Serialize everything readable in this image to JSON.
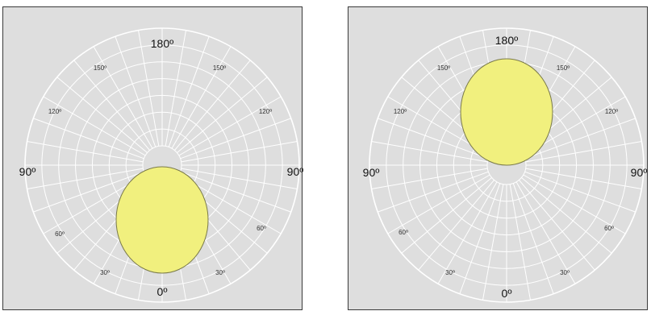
{
  "panels": [
    {
      "labels": {
        "top": "180º",
        "bottom": "0º",
        "left": "90º",
        "right": "90º",
        "upper_left_150": "150º",
        "upper_right_150": "150º",
        "upper_left_120": "120º",
        "upper_right_120": "120º",
        "lower_left_60": "60º",
        "lower_right_60": "60º",
        "lower_left_30": "30º",
        "lower_right_30": "30º"
      },
      "lobe": "down"
    },
    {
      "labels": {
        "top": "180º",
        "bottom": "0º",
        "left": "90º",
        "right": "90º",
        "upper_left_150": "150º",
        "upper_right_150": "150º",
        "upper_left_120": "120º",
        "upper_right_120": "120º",
        "lower_left_60": "60º",
        "lower_right_60": "60º",
        "lower_left_30": "30º",
        "lower_right_30": "30º"
      },
      "lobe": "up"
    }
  ],
  "colors": {
    "panel_bg": "#dedede",
    "grid": "#ffffff",
    "lobe_fill": "#f1f07e",
    "lobe_stroke": "#7a7a4a"
  }
}
